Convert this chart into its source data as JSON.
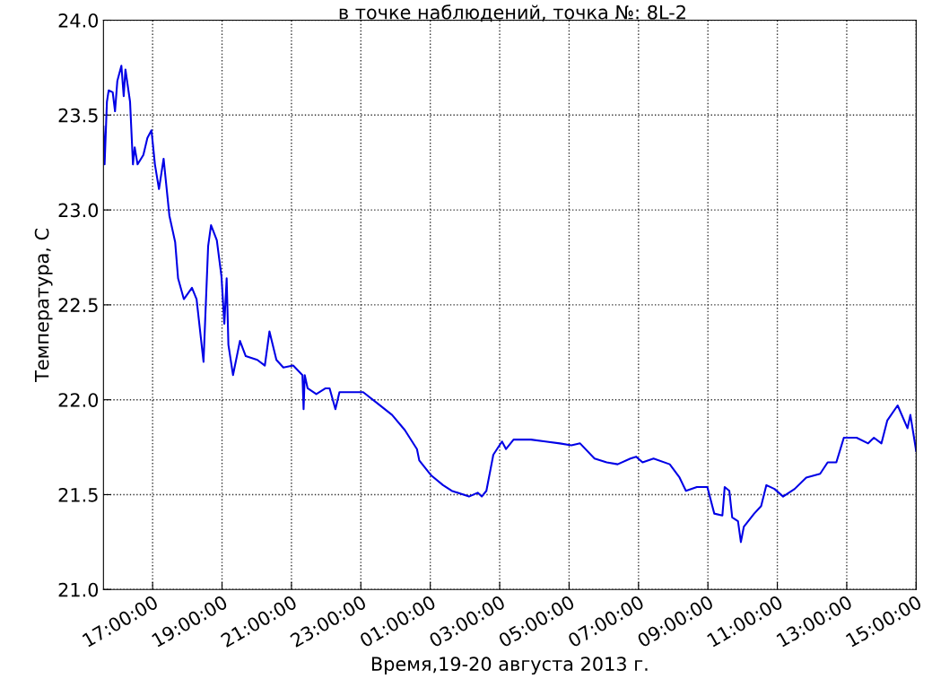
{
  "chart_data": {
    "type": "line",
    "title": "в точке наблюдений, точка №: 8L-2",
    "xlabel": "Время,19-20 августа 2013 г.",
    "ylabel": "Температура, С",
    "xlim": [
      "2013-08-19T15:35",
      "2013-08-20T15:00"
    ],
    "ylim": [
      21.0,
      24.0
    ],
    "yticks": [
      {
        "value": 21.0,
        "label": "21.0"
      },
      21.5,
      {
        "value": 22.0,
        "label": "22.0"
      },
      22.5,
      {
        "value": 23.0,
        "label": "23.0"
      },
      23.5,
      {
        "value": 24.0,
        "label": "24.0"
      }
    ],
    "xticks": [
      {
        "value": "2013-08-19T17:00",
        "label": "17:00:00"
      },
      {
        "value": "2013-08-19T19:00",
        "label": "19:00:00"
      },
      {
        "value": "2013-08-19T21:00",
        "label": "21:00:00"
      },
      {
        "value": "2013-08-19T23:00",
        "label": "23:00:00"
      },
      {
        "value": "2013-08-20T01:00",
        "label": "01:00:00"
      },
      {
        "value": "2013-08-20T03:00",
        "label": "03:00:00"
      },
      {
        "value": "2013-08-20T05:00",
        "label": "05:00:00"
      },
      {
        "value": "2013-08-20T07:00",
        "label": "07:00:00"
      },
      {
        "value": "2013-08-20T09:00",
        "label": "09:00:00"
      },
      {
        "value": "2013-08-20T11:00",
        "label": "11:00:00"
      },
      {
        "value": "2013-08-20T13:00",
        "label": "13:00:00"
      },
      {
        "value": "2013-08-20T15:00",
        "label": "15:00:00"
      }
    ],
    "grid": true,
    "marker": "none",
    "line_style": "solid",
    "series": [
      {
        "color": "#0000e6",
        "x": [
          "2013-08-19T15:35",
          "2013-08-19T15:37",
          "2013-08-19T15:41",
          "2013-08-19T15:44",
          "2013-08-19T15:51",
          "2013-08-19T15:55",
          "2013-08-19T15:59",
          "2013-08-19T16:06",
          "2013-08-19T16:10",
          "2013-08-19T16:13",
          "2013-08-19T16:21",
          "2013-08-19T16:26",
          "2013-08-19T16:29",
          "2013-08-19T16:34",
          "2013-08-19T16:44",
          "2013-08-19T16:51",
          "2013-08-19T16:58",
          "2013-08-19T17:04",
          "2013-08-19T17:11",
          "2013-08-19T17:19",
          "2013-08-19T17:29",
          "2013-08-19T17:39",
          "2013-08-19T17:44",
          "2013-08-19T17:54",
          "2013-08-19T18:08",
          "2013-08-19T18:16",
          "2013-08-19T18:28",
          "2013-08-19T18:36",
          "2013-08-19T18:41",
          "2013-08-19T18:51",
          "2013-08-19T18:59",
          "2013-08-19T19:04",
          "2013-08-19T19:08",
          "2013-08-19T19:11",
          "2013-08-19T19:19",
          "2013-08-19T19:31",
          "2013-08-19T19:41",
          "2013-08-19T20:01",
          "2013-08-19T20:14",
          "2013-08-19T20:22",
          "2013-08-19T20:34",
          "2013-08-19T20:46",
          "2013-08-19T21:03",
          "2013-08-19T21:19",
          "2013-08-19T21:21",
          "2013-08-19T21:23",
          "2013-08-19T21:28",
          "2013-08-19T21:43",
          "2013-08-19T21:59",
          "2013-08-19T22:06",
          "2013-08-19T22:16",
          "2013-08-19T22:23",
          "2013-08-19T22:38",
          "2013-08-19T23:04",
          "2013-08-19T23:29",
          "2013-08-19T23:54",
          "2013-08-20T00:16",
          "2013-08-20T00:37",
          "2013-08-20T00:41",
          "2013-08-20T01:02",
          "2013-08-20T01:22",
          "2013-08-20T01:37",
          "2013-08-20T02:07",
          "2013-08-20T02:22",
          "2013-08-20T02:29",
          "2013-08-20T02:37",
          "2013-08-20T02:49",
          "2013-08-20T03:04",
          "2013-08-20T03:11",
          "2013-08-20T03:24",
          "2013-08-20T03:54",
          "2013-08-20T04:19",
          "2013-08-20T04:44",
          "2013-08-20T05:04",
          "2013-08-20T05:19",
          "2013-08-20T05:44",
          "2013-08-20T06:05",
          "2013-08-20T06:24",
          "2013-08-20T06:46",
          "2013-08-20T06:56",
          "2013-08-20T07:07",
          "2013-08-20T07:26",
          "2013-08-20T07:54",
          "2013-08-20T08:11",
          "2013-08-20T08:22",
          "2013-08-20T08:41",
          "2013-08-20T08:59",
          "2013-08-20T09:11",
          "2013-08-20T09:25",
          "2013-08-20T09:29",
          "2013-08-20T09:37",
          "2013-08-20T09:42",
          "2013-08-20T09:52",
          "2013-08-20T09:57",
          "2013-08-20T10:02",
          "2013-08-20T10:20",
          "2013-08-20T10:32",
          "2013-08-20T10:41",
          "2013-08-20T10:55",
          "2013-08-20T11:10",
          "2013-08-20T11:30",
          "2013-08-20T11:50",
          "2013-08-20T12:14",
          "2013-08-20T12:27",
          "2013-08-20T12:42",
          "2013-08-20T12:55",
          "2013-08-20T13:17",
          "2013-08-20T13:37",
          "2013-08-20T13:47",
          "2013-08-20T14:00",
          "2013-08-20T14:10",
          "2013-08-20T14:28",
          "2013-08-20T14:45",
          "2013-08-20T14:50",
          "2013-08-20T15:00"
        ],
        "values": [
          23.44,
          23.24,
          23.57,
          23.63,
          23.62,
          23.52,
          23.68,
          23.76,
          23.6,
          23.74,
          23.57,
          23.24,
          23.33,
          23.24,
          23.29,
          23.38,
          23.42,
          23.24,
          23.11,
          23.27,
          22.97,
          22.83,
          22.64,
          22.53,
          22.59,
          22.53,
          22.2,
          22.81,
          22.92,
          22.84,
          22.65,
          22.4,
          22.64,
          22.29,
          22.13,
          22.31,
          22.23,
          22.21,
          22.18,
          22.36,
          22.21,
          22.17,
          22.18,
          22.13,
          21.95,
          22.13,
          22.06,
          22.03,
          22.06,
          22.06,
          21.95,
          22.04,
          22.04,
          22.04,
          21.98,
          21.92,
          21.84,
          21.74,
          21.68,
          21.6,
          21.55,
          21.52,
          21.49,
          21.51,
          21.49,
          21.52,
          21.71,
          21.78,
          21.74,
          21.79,
          21.79,
          21.78,
          21.77,
          21.76,
          21.77,
          21.69,
          21.67,
          21.66,
          21.69,
          21.7,
          21.67,
          21.69,
          21.66,
          21.59,
          21.52,
          21.54,
          21.54,
          21.4,
          21.39,
          21.54,
          21.52,
          21.38,
          21.36,
          21.25,
          21.33,
          21.4,
          21.44,
          21.55,
          21.53,
          21.49,
          21.53,
          21.59,
          21.61,
          21.67,
          21.67,
          21.8,
          21.8,
          21.77,
          21.8,
          21.77,
          21.89,
          21.97,
          21.85,
          21.92,
          21.73
        ]
      }
    ]
  }
}
